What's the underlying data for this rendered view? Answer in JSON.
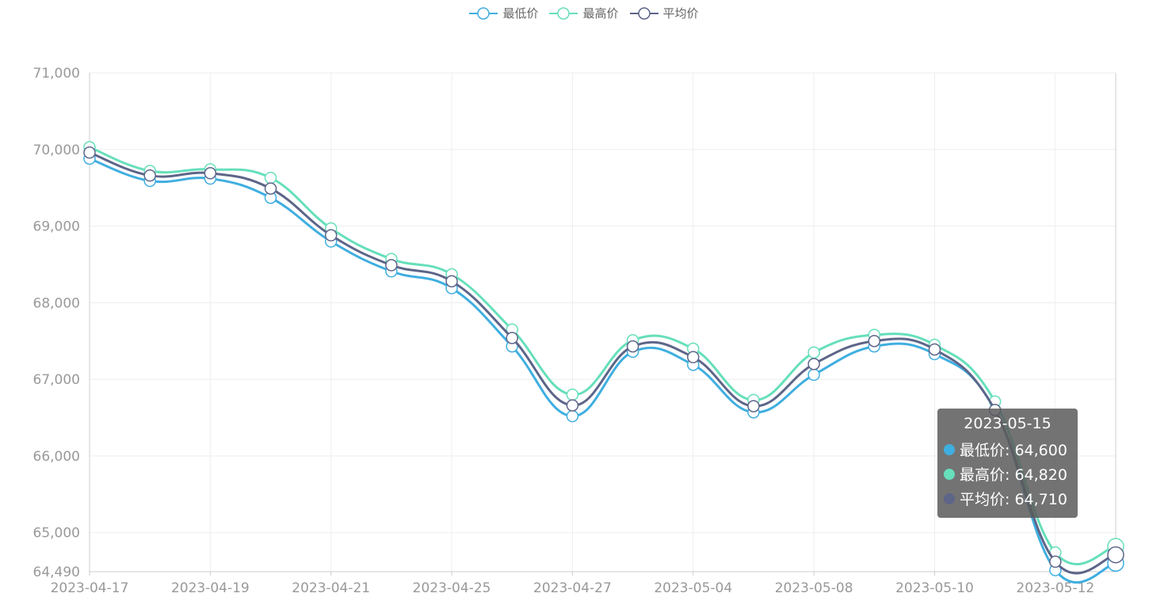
{
  "colors": {
    "min": "#3faee0",
    "max": "#66dfbb",
    "avg": "#5d6589",
    "grid": "#eeeeee",
    "axis": "#cccccc",
    "label": "#999999"
  },
  "legend": [
    {
      "key": "min",
      "label": "最低价",
      "icon": "circle-line-icon"
    },
    {
      "key": "max",
      "label": "最高价",
      "icon": "circle-line-icon"
    },
    {
      "key": "avg",
      "label": "平均价",
      "icon": "circle-line-icon"
    }
  ],
  "tooltip": {
    "title": "2023-05-15",
    "rows": [
      {
        "key": "min",
        "text": "最低价: 64,600"
      },
      {
        "key": "max",
        "text": "最高价: 64,820"
      },
      {
        "key": "avg",
        "text": "平均价: 64,710"
      }
    ]
  },
  "chart_data": {
    "type": "line",
    "smooth": true,
    "grid": true,
    "legend_position": "top",
    "x": [
      "2023-04-17",
      "2023-04-18",
      "2023-04-19",
      "2023-04-20",
      "2023-04-21",
      "2023-04-24",
      "2023-04-25",
      "2023-04-26",
      "2023-04-27",
      "2023-04-28",
      "2023-05-04",
      "2023-05-05",
      "2023-05-08",
      "2023-05-09",
      "2023-05-10",
      "2023-05-11",
      "2023-05-12",
      "2023-05-15"
    ],
    "x_tick_labels": [
      "2023-04-17",
      "2023-04-19",
      "2023-04-21",
      "2023-04-25",
      "2023-04-27",
      "2023-05-04",
      "2023-05-08",
      "2023-05-10",
      "2023-05-12"
    ],
    "x_tick_every": 2,
    "ylim": [
      64490,
      71000
    ],
    "y_ticks": [
      64490,
      65000,
      66000,
      67000,
      68000,
      69000,
      70000,
      71000
    ],
    "y_tick_labels": [
      "64,490",
      "65,000",
      "66,000",
      "67,000",
      "68,000",
      "69,000",
      "70,000",
      "71,000"
    ],
    "series": [
      {
        "key": "min",
        "name": "最低价",
        "values": [
          69880,
          69590,
          69620,
          69370,
          68800,
          68410,
          68190,
          67430,
          66520,
          67360,
          67190,
          66570,
          67060,
          67430,
          67330,
          66600,
          64510,
          64600
        ]
      },
      {
        "key": "max",
        "name": "最高价",
        "values": [
          70030,
          69720,
          69740,
          69630,
          68970,
          68570,
          68370,
          67650,
          66800,
          67510,
          67400,
          66730,
          67350,
          67580,
          67450,
          66710,
          64740,
          64820
        ]
      },
      {
        "key": "avg",
        "name": "平均价",
        "values": [
          69960,
          69660,
          69690,
          69490,
          68880,
          68490,
          68280,
          67540,
          66660,
          67430,
          67290,
          66650,
          67200,
          67500,
          67390,
          66600,
          64620,
          64710
        ]
      }
    ]
  }
}
